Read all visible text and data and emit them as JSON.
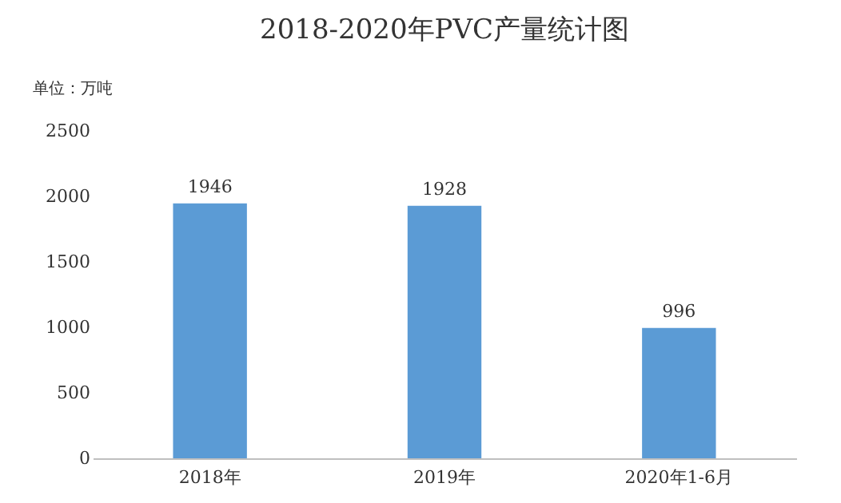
{
  "chart_data": {
    "type": "bar",
    "title": "2018-2020年PVC产量统计图",
    "ylabel": "单位：万吨",
    "categories": [
      "2018年",
      "2019年",
      "2020年1-6月"
    ],
    "values": [
      1946,
      1928,
      996
    ],
    "color": "#5b9bd5",
    "ylim": [
      0,
      2500
    ],
    "yticks": [
      0,
      500,
      1000,
      1500,
      2000,
      2500
    ],
    "grid": false,
    "data_labels": true
  }
}
